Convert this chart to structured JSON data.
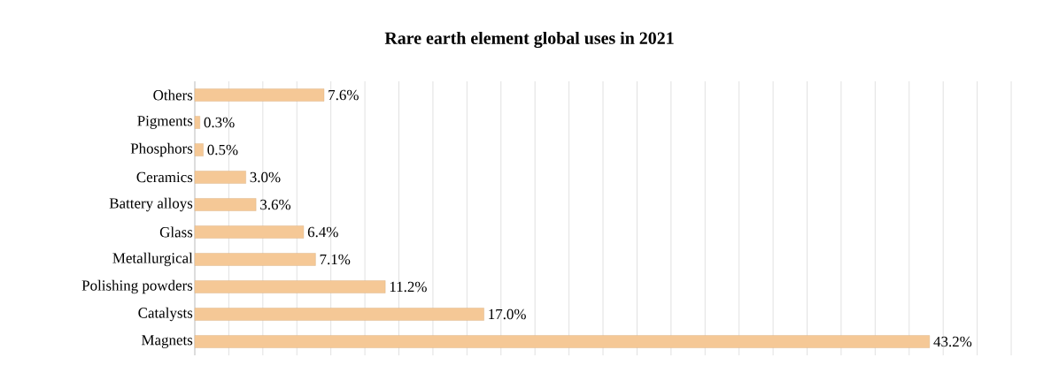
{
  "chart_data": {
    "type": "bar",
    "orientation": "horizontal",
    "title": "Rare earth element global uses in 2021",
    "categories": [
      "Others",
      "Pigments",
      "Phosphors",
      "Ceramics",
      "Battery alloys",
      "Glass",
      "Metallurgical",
      "Polishing powders",
      "Catalysts",
      "Magnets"
    ],
    "values": [
      7.6,
      0.3,
      0.5,
      3.0,
      3.6,
      6.4,
      7.1,
      11.2,
      17.0,
      43.2
    ],
    "value_labels": [
      "7.6%",
      "0.3%",
      "0.5%",
      "3.0%",
      "3.6%",
      "6.4%",
      "7.1%",
      "11.2%",
      "17.0%",
      "43.2%"
    ],
    "color": "#f5c896",
    "grid": "x",
    "tick_labels": "y"
  }
}
